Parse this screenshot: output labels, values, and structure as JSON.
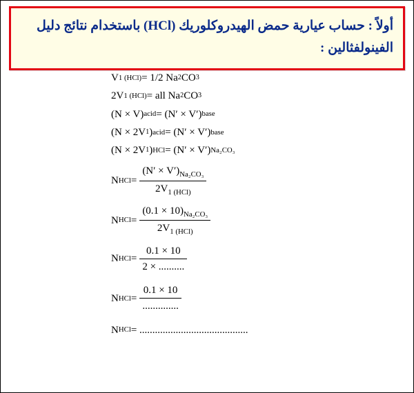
{
  "header": {
    "text_full": "أولاً : حساب عيارية حمض الهيدروكلوريك (HCl) باستخدام نتائج دليل الفينولفثالين :"
  },
  "eq": {
    "l1_a": "V",
    "l1_sub": "1 (HCl)",
    "l1_eq": " = 1/2 Na",
    "l1_c": "CO",
    "l2_a": "2V",
    "l2_sub": "1 (HCl)",
    "l2_eq": " = all Na",
    "l2_c": "CO",
    "l3": "(N × V)",
    "l3_s1": "acid",
    "l3_b": " = (N′ × V′)",
    "l3_s2": "base",
    "l4": "(N × 2V",
    "l4_s1": "acid",
    "l4_b": " = (N′ × V′)",
    "l4_s2": "base",
    "l5": "(N × 2V",
    "l5_s1": "HCl",
    "l5_b": " = (N′ × V′)",
    "l5_s2": "Na₂CO₃",
    "nhcl": "N",
    "hcl": "HCl",
    "eqsign": " = ",
    "f1_num_a": "(N′ × V′)",
    "f1_num_s": "Na₂CO₃",
    "f1_den": "2V",
    "f1_den_s": "1 (HCl)",
    "f2_num_a": "(0.1 × 10)",
    "f2_num_s": "Na₂CO₃",
    "f3_num": "0.1 × 10",
    "f3_den": "2 × ..........",
    "f4_num": "0.1 × 10",
    "f4_den": "..............",
    "l_last": " = ..........................................",
    "sub2": "2",
    "sub3": "3",
    "sub1": "1",
    "paren_close": ")"
  }
}
